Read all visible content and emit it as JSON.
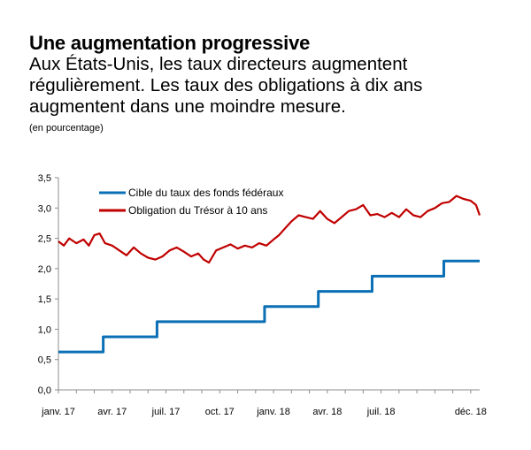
{
  "header": {
    "title": "Une augmentation progressive",
    "subtitle": "Aux États-Unis, les taux directeurs augmentent régulièrement. Les taux des obligations à dix ans augmentent dans une moindre mesure.",
    "unit": "(en pourcentage)"
  },
  "colors": {
    "fed": "#0a6fb5",
    "treasury": "#c00000",
    "axis": "#8c8c8c"
  },
  "chart_data": {
    "type": "line",
    "title": "Une augmentation progressive",
    "ylabel": "(en pourcentage)",
    "ylim": [
      0,
      3.5
    ],
    "yticks": [
      "0,0",
      "0,5",
      "1,0",
      "1,5",
      "2,0",
      "2,5",
      "3,0",
      "3,5"
    ],
    "xlim": [
      0,
      23.5
    ],
    "xticks": [
      {
        "pos": 0,
        "label": "janv. 17"
      },
      {
        "pos": 3,
        "label": "avr. 17"
      },
      {
        "pos": 6,
        "label": "juil. 17"
      },
      {
        "pos": 9,
        "label": "oct. 17"
      },
      {
        "pos": 12,
        "label": "janv. 18"
      },
      {
        "pos": 15,
        "label": "avr. 18"
      },
      {
        "pos": 18,
        "label": "juil. 18"
      },
      {
        "pos": 23,
        "label": "déc. 18"
      }
    ],
    "series": [
      {
        "name": "Cible du taux des fonds fédéraux",
        "step": true,
        "x": [
          0,
          2.5,
          5.5,
          11.5,
          14.5,
          17.5,
          21.5,
          23.5
        ],
        "y": [
          0.625,
          0.875,
          1.125,
          1.375,
          1.625,
          1.875,
          2.125,
          2.125
        ]
      },
      {
        "name": "Obligation du Trésor à 10 ans",
        "x": [
          0,
          0.3,
          0.6,
          1,
          1.4,
          1.7,
          2,
          2.3,
          2.6,
          3,
          3.4,
          3.8,
          4.2,
          4.6,
          5,
          5.4,
          5.8,
          6.2,
          6.6,
          7,
          7.4,
          7.8,
          8.1,
          8.4,
          8.8,
          9.2,
          9.6,
          10,
          10.4,
          10.8,
          11.2,
          11.6,
          12,
          12.3,
          12.6,
          13,
          13.4,
          13.8,
          14.2,
          14.6,
          15,
          15.4,
          15.8,
          16.2,
          16.6,
          17,
          17.4,
          17.8,
          18.2,
          18.6,
          19,
          19.4,
          19.8,
          20.2,
          20.6,
          21,
          21.4,
          21.8,
          22.2,
          22.6,
          23,
          23.3,
          23.5
        ],
        "y": [
          2.45,
          2.38,
          2.5,
          2.42,
          2.48,
          2.38,
          2.55,
          2.58,
          2.42,
          2.38,
          2.3,
          2.22,
          2.35,
          2.25,
          2.18,
          2.15,
          2.2,
          2.3,
          2.35,
          2.28,
          2.2,
          2.25,
          2.15,
          2.1,
          2.3,
          2.35,
          2.4,
          2.33,
          2.38,
          2.35,
          2.42,
          2.38,
          2.48,
          2.55,
          2.65,
          2.78,
          2.88,
          2.85,
          2.82,
          2.95,
          2.82,
          2.75,
          2.85,
          2.95,
          2.98,
          3.05,
          2.88,
          2.9,
          2.85,
          2.92,
          2.85,
          2.98,
          2.88,
          2.85,
          2.95,
          3.0,
          3.08,
          3.1,
          3.2,
          3.15,
          3.12,
          3.05,
          2.88
        ]
      }
    ],
    "legend": "top-left"
  }
}
